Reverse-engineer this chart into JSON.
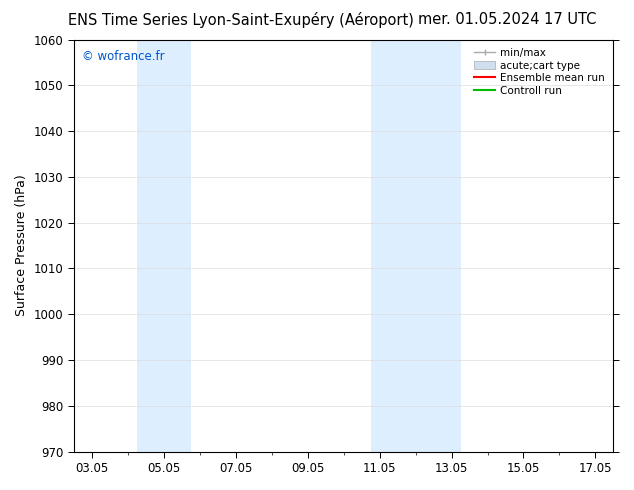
{
  "title_left": "ENS Time Series Lyon-Saint-Exupéry (Aéroport)",
  "title_right": "mer. 01.05.2024 17 UTC",
  "ylabel": "Surface Pressure (hPa)",
  "ylim": [
    970,
    1060
  ],
  "yticks": [
    970,
    980,
    990,
    1000,
    1010,
    1020,
    1030,
    1040,
    1050,
    1060
  ],
  "xlim_start": 2.5,
  "xlim_end": 17.5,
  "xtick_labels": [
    "03.05",
    "05.05",
    "07.05",
    "09.05",
    "11.05",
    "13.05",
    "15.05",
    "17.05"
  ],
  "xtick_positions": [
    3.0,
    5.0,
    7.0,
    9.0,
    11.0,
    13.0,
    15.0,
    17.0
  ],
  "shaded_bands": [
    {
      "xmin": 4.25,
      "xmax": 5.75,
      "color": "#ddeeff"
    },
    {
      "xmin": 10.75,
      "xmax": 11.5,
      "color": "#ddeeff"
    },
    {
      "xmin": 11.5,
      "xmax": 13.25,
      "color": "#ddeeff"
    }
  ],
  "copyright_text": "© wofrance.fr",
  "copyright_color": "#0055cc",
  "background_color": "#ffffff",
  "legend_labels": [
    "min/max",
    "acute;cart type",
    "Ensemble mean run",
    "Controll run"
  ],
  "legend_colors_line": [
    "#aaaaaa",
    "#aaaaaa",
    "#ff0000",
    "#00bb00"
  ],
  "legend_fill_color": "#d0dff0",
  "grid_color": "#dddddd",
  "title_fontsize": 10.5,
  "axis_label_fontsize": 9,
  "tick_fontsize": 8.5
}
